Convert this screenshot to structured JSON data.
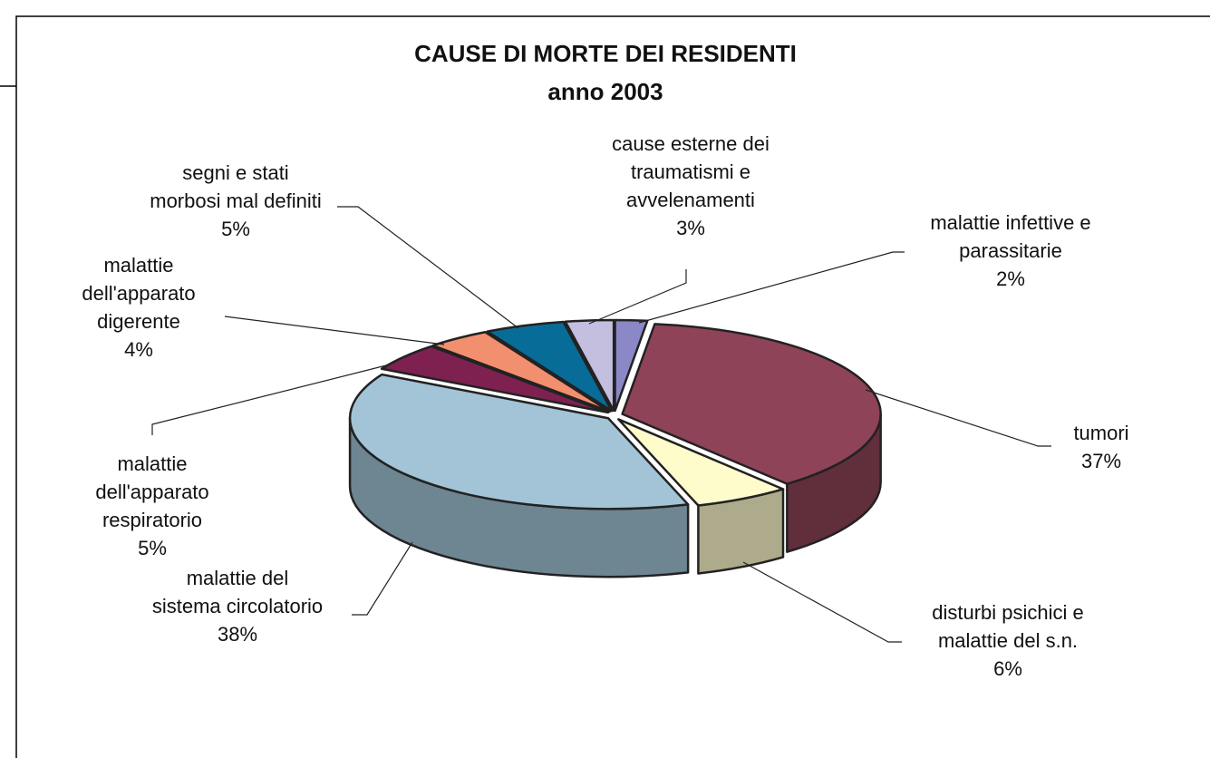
{
  "chart_data": {
    "type": "pie",
    "title": "CAUSE DI MORTE DEI RESIDENTI",
    "subtitle": "anno 2003",
    "categories": [
      "malattie infettive e\nparassitarie",
      "tumori",
      "disturbi psichici e\nmalattie del s.n.",
      "malattie del\nsistema circolatorio",
      "malattie\ndell'apparato\nrespiratorio",
      "malattie\ndell'apparato\ndigerente",
      "segni e stati\nmorbosi mal definiti",
      "cause esterne dei\ntraumatismi e\navvelenamenti"
    ],
    "values": [
      2,
      37,
      6,
      38,
      5,
      4,
      5,
      3
    ],
    "value_labels": [
      "2%",
      "37%",
      "6%",
      "38%",
      "5%",
      "4%",
      "5%",
      "3%"
    ],
    "colors": [
      "#8b88c8",
      "#8f4358",
      "#fffccc",
      "#a2c4d6",
      "#7e2150",
      "#f28f6f",
      "#086c98",
      "#c4bedf"
    ]
  }
}
